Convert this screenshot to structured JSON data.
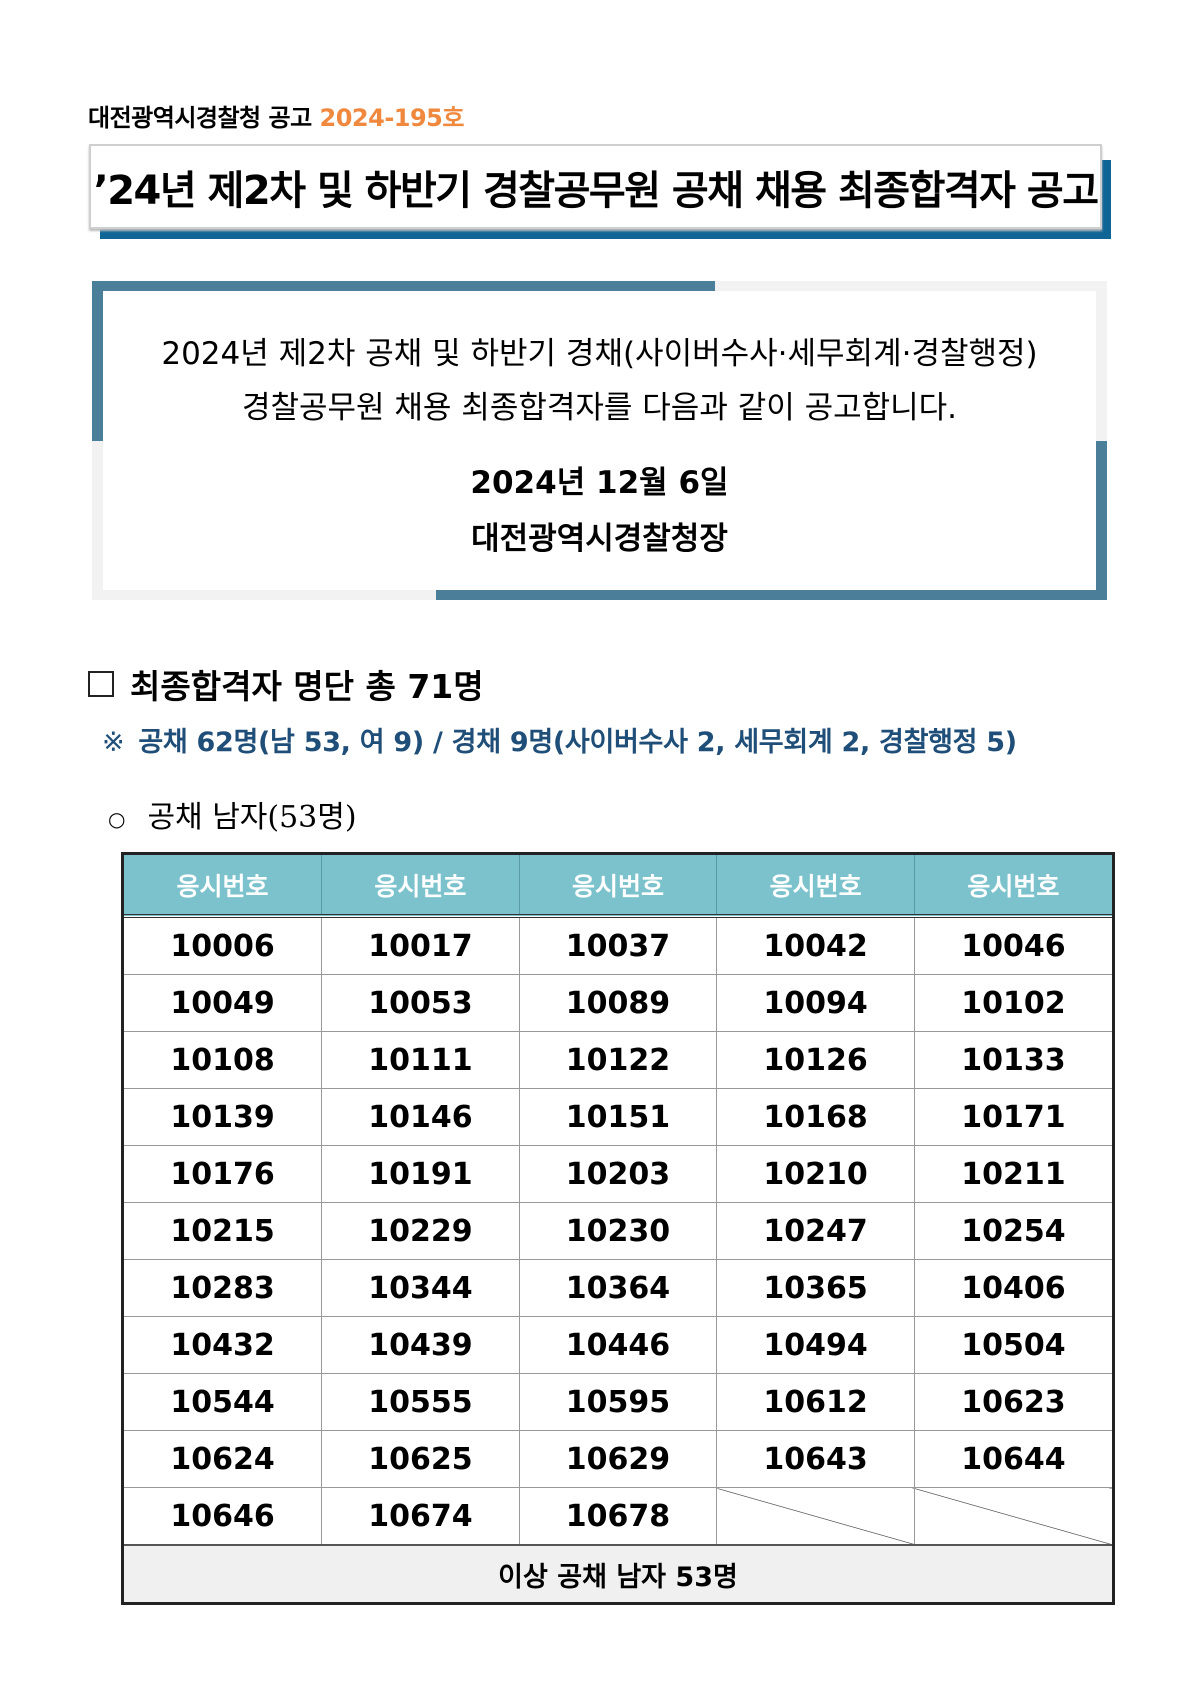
{
  "header": {
    "agency": "대전광역시경찰청 공고",
    "notice_number": "2024-195호"
  },
  "title": "’24년 제2차 및 하반기 경찰공무원 공채 채용 최종합격자 공고",
  "notice": {
    "line1": "2024년 제2차 공채 및 하반기 경채(사이버수사·세무회계·경찰행정)",
    "line2": "경찰공무원 채용 최종합격자를 다음과 같이 공고합니다.",
    "date": "2024년 12월 6일",
    "issuer": "대전광역시경찰청장"
  },
  "section": {
    "heading": "최종합격자 명단 총 71명",
    "note_mark": "※",
    "note": "공채 62명(남 53, 여 9) / 경채 9명(사이버수사 2, 세무회계 2, 경찰행정 5)",
    "subheading_bullet": "○",
    "subheading": "공채 남자(53명)"
  },
  "table": {
    "headers": [
      "응시번호",
      "응시번호",
      "응시번호",
      "응시번호",
      "응시번호"
    ],
    "rows": [
      [
        "10006",
        "10017",
        "10037",
        "10042",
        "10046"
      ],
      [
        "10049",
        "10053",
        "10089",
        "10094",
        "10102"
      ],
      [
        "10108",
        "10111",
        "10122",
        "10126",
        "10133"
      ],
      [
        "10139",
        "10146",
        "10151",
        "10168",
        "10171"
      ],
      [
        "10176",
        "10191",
        "10203",
        "10210",
        "10211"
      ],
      [
        "10215",
        "10229",
        "10230",
        "10247",
        "10254"
      ],
      [
        "10283",
        "10344",
        "10364",
        "10365",
        "10406"
      ],
      [
        "10432",
        "10439",
        "10446",
        "10494",
        "10504"
      ],
      [
        "10544",
        "10555",
        "10595",
        "10612",
        "10623"
      ],
      [
        "10624",
        "10625",
        "10629",
        "10643",
        "10644"
      ],
      [
        "10646",
        "10674",
        "10678",
        "",
        ""
      ]
    ],
    "footer": "이상 공채 남자 53명"
  },
  "colors": {
    "accent_orange": "#f0883e",
    "title_shadow": "#0e6596",
    "frame_blue": "#4a7e99",
    "header_teal": "#7bc2cd",
    "note_blue": "#1f4e79"
  }
}
